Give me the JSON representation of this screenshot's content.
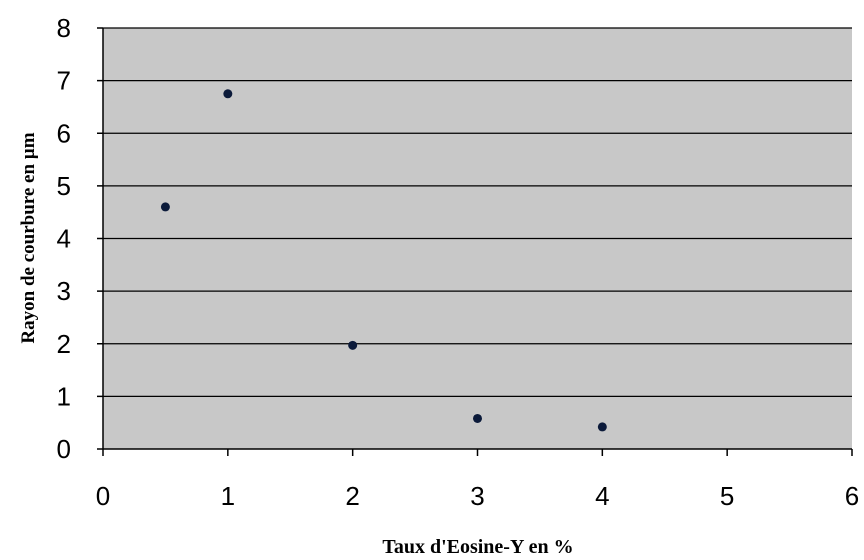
{
  "chart_data": {
    "type": "scatter",
    "title": "",
    "xlabel": "Taux d'Eosine-Y en %",
    "ylabel": "Rayon de courbure en µm",
    "xlim": [
      0,
      6
    ],
    "ylim": [
      0,
      8
    ],
    "xticks": [
      "0",
      "1",
      "2",
      "3",
      "4",
      "5",
      "6"
    ],
    "yticks": [
      "0",
      "1",
      "2",
      "3",
      "4",
      "5",
      "6",
      "7",
      "8"
    ],
    "grid": "horizontal",
    "legend": "none",
    "points": [
      {
        "x": 0.5,
        "y": 4.6
      },
      {
        "x": 1.0,
        "y": 6.75
      },
      {
        "x": 2.0,
        "y": 1.97
      },
      {
        "x": 3.0,
        "y": 0.58
      },
      {
        "x": 4.0,
        "y": 0.42
      }
    ]
  },
  "colors": {
    "plot_background": "#c8c8c8",
    "gridline": "#000000",
    "marker": "#0b1a3a"
  }
}
